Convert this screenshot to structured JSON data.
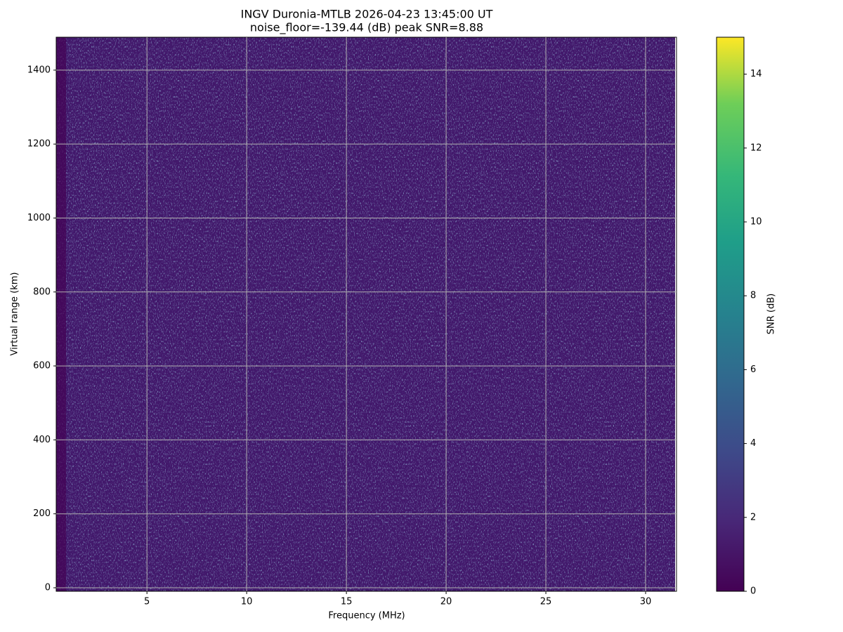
{
  "chart_data": {
    "type": "heatmap",
    "title": "INGV Duronia-MTLB 2026-04-23 13:45:00  UT",
    "subtitle": "noise_floor=-139.44 (dB) peak SNR=8.88",
    "xlabel": "Frequency (MHz)",
    "ylabel": "Virtual range (km)",
    "xlim": [
      0.45,
      31.55
    ],
    "ylim": [
      -9.5,
      1489
    ],
    "xticks": [
      5,
      10,
      15,
      20,
      25,
      30
    ],
    "yticks": [
      0,
      200,
      400,
      600,
      800,
      1000,
      1200,
      1400
    ],
    "grid": true,
    "colormap": "viridis",
    "colorbar": {
      "label": "SNR (dB)",
      "lim": [
        0,
        15
      ],
      "ticks": [
        0,
        2,
        4,
        6,
        8,
        10,
        12,
        14
      ]
    }
  }
}
